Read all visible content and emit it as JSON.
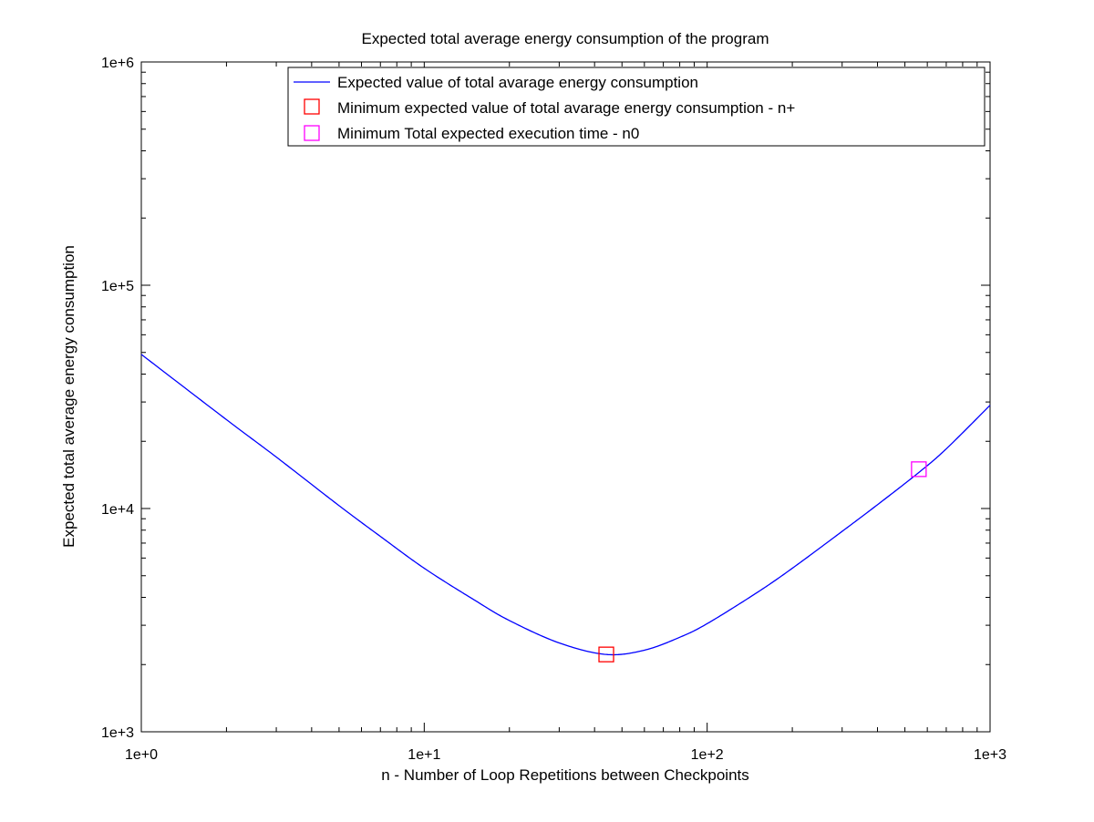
{
  "chart_data": {
    "type": "line",
    "title": "Expected total average energy consumption of the program",
    "xlabel": "n - Number of Loop Repetitions between Checkpoints",
    "ylabel": "Expected total average energy consumption",
    "xscale": "log",
    "yscale": "log",
    "xlim": [
      1,
      1000
    ],
    "ylim": [
      1000,
      1000000
    ],
    "x_ticks": [
      1,
      10,
      100,
      1000
    ],
    "x_tick_labels": [
      "1e+0",
      "1e+1",
      "1e+2",
      "1e+3"
    ],
    "y_ticks": [
      1000,
      10000,
      100000,
      1000000
    ],
    "y_tick_labels": [
      "1e+3",
      "1e+4",
      "1e+5",
      "1e+6"
    ],
    "grid": false,
    "legend_position": "top-right",
    "colors": {
      "line": "#0000ff",
      "min_energy_marker": "#ff0000",
      "min_time_marker": "#ff00ff",
      "axes": "#000000",
      "background": "#ffffff"
    },
    "series": [
      {
        "name": "Expected value of total avarage energy consumption",
        "kind": "line",
        "x": [
          1,
          2,
          3,
          5,
          7,
          10,
          15,
          20,
          30,
          44,
          60,
          80,
          100,
          150,
          200,
          300,
          400,
          560,
          700,
          1000
        ],
        "y": [
          49000,
          25000,
          17000,
          10300,
          7500,
          5400,
          3900,
          3150,
          2500,
          2220,
          2320,
          2650,
          3050,
          4200,
          5400,
          7900,
          10400,
          14500,
          18500,
          29000
        ]
      },
      {
        "name": "Minimum expected value of total avarage energy consumption - n+",
        "kind": "marker",
        "x": [
          44
        ],
        "y": [
          2220
        ]
      },
      {
        "name": "Minimum Total expected execution time - n0",
        "kind": "marker",
        "x": [
          560
        ],
        "y": [
          15000
        ]
      }
    ]
  }
}
